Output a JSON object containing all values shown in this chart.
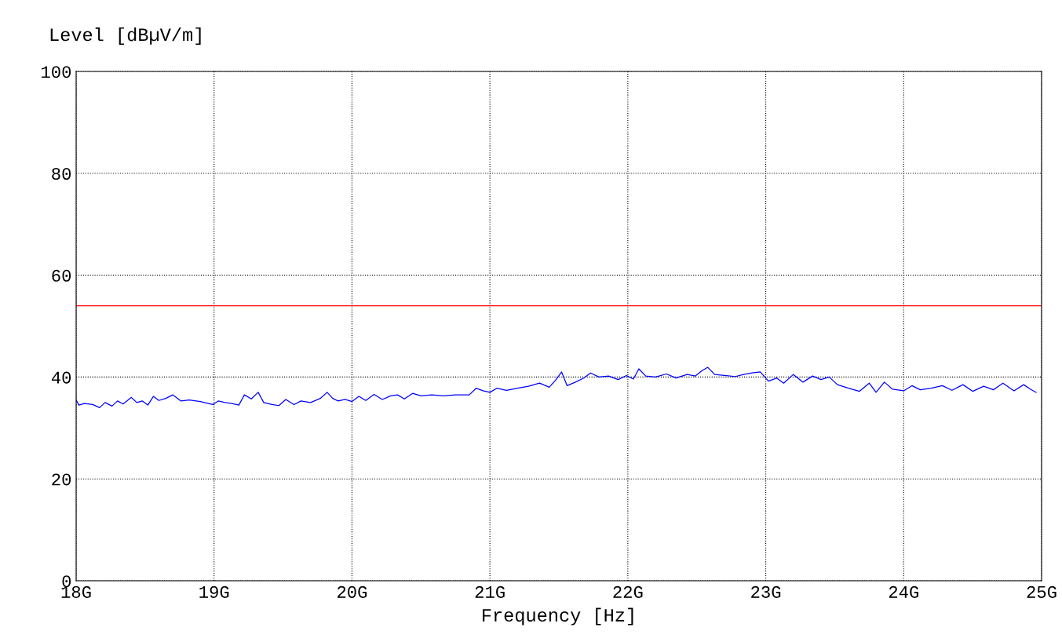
{
  "chart_data": {
    "type": "line",
    "xlabel": "Frequency [Hz]",
    "ylabel": "Level [dBµV/m]",
    "xlim": [
      18,
      25
    ],
    "ylim": [
      0,
      100
    ],
    "xticks": [
      {
        "value": 18,
        "label": "18G"
      },
      {
        "value": 19,
        "label": "19G"
      },
      {
        "value": 20,
        "label": "20G"
      },
      {
        "value": 21,
        "label": "21G"
      },
      {
        "value": 22,
        "label": "22G"
      },
      {
        "value": 23,
        "label": "23G"
      },
      {
        "value": 24,
        "label": "24G"
      },
      {
        "value": 25,
        "label": "25G"
      }
    ],
    "yticks": [
      0,
      20,
      40,
      60,
      80,
      100
    ],
    "grid": true,
    "marker": "none",
    "line_style": "solid",
    "ref_lines": [
      {
        "axis": "y",
        "value": 54,
        "color": "#ff0000"
      }
    ],
    "series": [
      {
        "color": "#0000ff",
        "x": [
          18.0,
          18.02,
          18.06,
          18.12,
          18.17,
          18.21,
          18.26,
          18.3,
          18.34,
          18.4,
          18.44,
          18.48,
          18.52,
          18.56,
          18.6,
          18.65,
          18.7,
          18.76,
          18.82,
          18.9,
          18.99,
          19.03,
          19.08,
          19.13,
          19.18,
          19.22,
          19.27,
          19.32,
          19.36,
          19.42,
          19.47,
          19.52,
          19.58,
          19.63,
          19.7,
          19.77,
          19.82,
          19.86,
          19.9,
          19.95,
          20.0,
          20.05,
          20.1,
          20.16,
          20.22,
          20.28,
          20.33,
          20.38,
          20.44,
          20.5,
          20.58,
          20.66,
          20.75,
          20.85,
          20.9,
          20.95,
          21.0,
          21.05,
          21.12,
          21.2,
          21.28,
          21.36,
          21.43,
          21.48,
          21.52,
          21.56,
          21.62,
          21.68,
          21.73,
          21.79,
          21.86,
          21.93,
          21.99,
          22.04,
          22.08,
          22.13,
          22.2,
          22.28,
          22.35,
          22.43,
          22.49,
          22.54,
          22.58,
          22.63,
          22.7,
          22.78,
          22.84,
          22.9,
          22.96,
          23.02,
          23.08,
          23.13,
          23.2,
          23.27,
          23.34,
          23.4,
          23.46,
          23.52,
          23.6,
          23.68,
          23.75,
          23.8,
          23.86,
          23.92,
          24.0,
          24.06,
          24.12,
          24.2,
          24.28,
          24.35,
          24.43,
          24.5,
          24.58,
          24.65,
          24.72,
          24.8,
          24.87,
          24.92,
          24.96
        ],
        "values": [
          35.5,
          34.5,
          34.8,
          34.6,
          34.0,
          35.0,
          34.3,
          35.3,
          34.7,
          36.0,
          35.0,
          35.3,
          34.5,
          36.2,
          35.4,
          35.8,
          36.5,
          35.3,
          35.5,
          35.2,
          34.6,
          35.3,
          35.0,
          34.8,
          34.5,
          36.5,
          35.7,
          37.0,
          35.0,
          34.6,
          34.4,
          35.6,
          34.6,
          35.3,
          35.0,
          35.8,
          37.0,
          35.8,
          35.3,
          35.6,
          35.2,
          36.2,
          35.4,
          36.6,
          35.6,
          36.3,
          36.5,
          35.7,
          36.8,
          36.3,
          36.5,
          36.3,
          36.5,
          36.5,
          37.8,
          37.3,
          37.0,
          37.8,
          37.4,
          37.8,
          38.2,
          38.8,
          38.0,
          39.5,
          41.0,
          38.3,
          39.0,
          39.8,
          40.8,
          40.0,
          40.2,
          39.5,
          40.3,
          39.6,
          41.6,
          40.2,
          40.0,
          40.6,
          39.8,
          40.5,
          40.2,
          41.3,
          41.9,
          40.5,
          40.3,
          40.1,
          40.5,
          40.8,
          41.0,
          39.2,
          39.8,
          38.8,
          40.5,
          39.0,
          40.2,
          39.5,
          40.0,
          38.5,
          37.8,
          37.2,
          38.8,
          37.0,
          39.0,
          37.6,
          37.3,
          38.3,
          37.5,
          37.8,
          38.3,
          37.4,
          38.5,
          37.2,
          38.2,
          37.5,
          38.8,
          37.3,
          38.5,
          37.6,
          37.0
        ]
      }
    ]
  }
}
